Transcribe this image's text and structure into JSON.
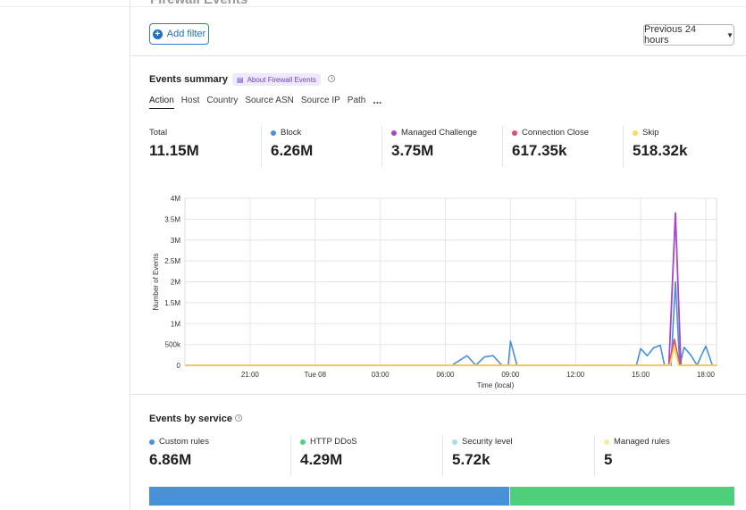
{
  "header": {
    "cut_title": "Firewall Events",
    "add_filter_label": "Add filter",
    "time_range": "Previous 24 hours"
  },
  "events_summary": {
    "title": "Events summary",
    "about_label": "About Firewall Events",
    "tabs": [
      "Action",
      "Host",
      "Country",
      "Source ASN",
      "Source IP",
      "Path",
      "..."
    ],
    "stats": [
      {
        "label": "Total",
        "value": "11.15M",
        "color": ""
      },
      {
        "label": "Block",
        "value": "6.26M",
        "color": "#4a90d9"
      },
      {
        "label": "Managed Challenge",
        "value": "3.75M",
        "color": "#a646c9"
      },
      {
        "label": "Connection Close",
        "value": "617.35k",
        "color": "#e0506e"
      },
      {
        "label": "Skip",
        "value": "518.32k",
        "color": "#f5dc5a"
      }
    ]
  },
  "chart_data": {
    "type": "line",
    "ylabel": "Number of Events",
    "xlabel": "Time (local)",
    "ylim": [
      0,
      4000000
    ],
    "yticks": [
      {
        "v": 0,
        "label": "0"
      },
      {
        "v": 500000,
        "label": "500k"
      },
      {
        "v": 1000000,
        "label": "1M"
      },
      {
        "v": 1500000,
        "label": "1.5M"
      },
      {
        "v": 2000000,
        "label": "2M"
      },
      {
        "v": 2500000,
        "label": "2.5M"
      },
      {
        "v": 3000000,
        "label": "3M"
      },
      {
        "v": 3500000,
        "label": "3.5M"
      },
      {
        "v": 4000000,
        "label": "4M"
      }
    ],
    "xlim": [
      18,
      42
    ],
    "xticks": [
      {
        "v": 21,
        "label": "21:00"
      },
      {
        "v": 24,
        "label": "Tue 08"
      },
      {
        "v": 27,
        "label": "03:00"
      },
      {
        "v": 30,
        "label": "06:00"
      },
      {
        "v": 33,
        "label": "09:00"
      },
      {
        "v": 36,
        "label": "12:00"
      },
      {
        "v": 39,
        "label": "15:00"
      },
      {
        "v": 42,
        "label": "18:00"
      }
    ],
    "series": [
      {
        "name": "Block",
        "color": "#4a90d9",
        "points": [
          [
            18,
            0
          ],
          [
            30.3,
            0
          ],
          [
            31,
            230000
          ],
          [
            31.4,
            0
          ],
          [
            31.8,
            200000
          ],
          [
            32.2,
            230000
          ],
          [
            32.6,
            0
          ],
          [
            32.9,
            0
          ],
          [
            33,
            580000
          ],
          [
            33.3,
            0
          ],
          [
            38.8,
            0
          ],
          [
            39,
            400000
          ],
          [
            39.3,
            230000
          ],
          [
            39.6,
            420000
          ],
          [
            39.9,
            480000
          ],
          [
            40.1,
            0
          ],
          [
            40.4,
            0
          ],
          [
            40.6,
            2000000
          ],
          [
            40.8,
            0
          ],
          [
            41,
            430000
          ],
          [
            41.3,
            250000
          ],
          [
            41.6,
            0
          ],
          [
            41.8,
            240000
          ],
          [
            42,
            460000
          ],
          [
            42.3,
            0
          ],
          [
            42.5,
            0
          ]
        ]
      },
      {
        "name": "Managed Challenge",
        "color": "#a646c9",
        "points": [
          [
            18,
            0
          ],
          [
            40.3,
            0
          ],
          [
            40.6,
            3650000
          ],
          [
            40.85,
            0
          ],
          [
            42.5,
            0
          ]
        ]
      },
      {
        "name": "Connection Close",
        "color": "#e0506e",
        "points": [
          [
            18,
            0
          ],
          [
            40.3,
            0
          ],
          [
            40.55,
            620000
          ],
          [
            40.8,
            0
          ],
          [
            42.5,
            0
          ]
        ]
      },
      {
        "name": "Skip",
        "color": "#f5dc5a",
        "points": [
          [
            18,
            0
          ],
          [
            40.35,
            0
          ],
          [
            40.55,
            450000
          ],
          [
            40.75,
            0
          ],
          [
            42.5,
            0
          ]
        ]
      }
    ]
  },
  "events_by_service": {
    "title": "Events by service",
    "stats": [
      {
        "label": "Custom rules",
        "value": "6.86M",
        "color": "#4a90d9"
      },
      {
        "label": "HTTP DDoS",
        "value": "4.29M",
        "color": "#4dcf7c"
      },
      {
        "label": "Security level",
        "value": "5.72k",
        "color": "#a6dfe6"
      },
      {
        "label": "Managed rules",
        "value": "5",
        "color": "#f9e7a4"
      }
    ],
    "bar_fractions": [
      0.615,
      0.385
    ]
  }
}
